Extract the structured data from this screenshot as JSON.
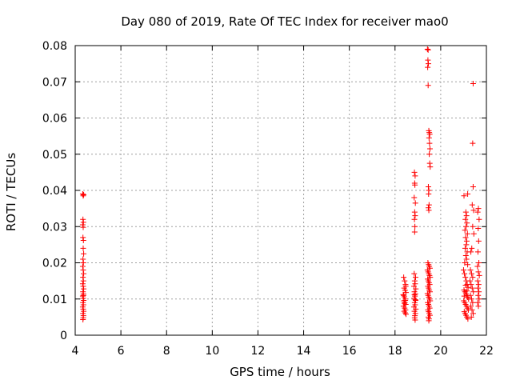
{
  "chart_data": {
    "type": "scatter",
    "title": "Day 080 of 2019, Rate Of TEC Index for receiver mao0",
    "xlabel": "GPS time / hours",
    "ylabel": "ROTI / TECUs",
    "xlim": [
      4,
      22
    ],
    "ylim": [
      0,
      0.08
    ],
    "xticks": [
      4,
      6,
      8,
      10,
      12,
      14,
      16,
      18,
      20,
      22
    ],
    "yticks": [
      0,
      0.01,
      0.02,
      0.03,
      0.04,
      0.05,
      0.06,
      0.07,
      0.08
    ],
    "xtick_labels": [
      "4",
      "6",
      "8",
      "10",
      "12",
      "14",
      "16",
      "18",
      "20",
      "22"
    ],
    "ytick_labels": [
      "0",
      "0.01",
      "0.02",
      "0.03",
      "0.04",
      "0.05",
      "0.06",
      "0.07",
      "0.08"
    ],
    "grid": true,
    "marker": "+",
    "marker_color": "#ff0000",
    "series": [
      {
        "name": "ROTI",
        "points": [
          [
            4.33,
            0.039
          ],
          [
            4.35,
            0.0385
          ],
          [
            4.37,
            0.0388
          ],
          [
            4.34,
            0.032
          ],
          [
            4.36,
            0.0312
          ],
          [
            4.33,
            0.0305
          ],
          [
            4.35,
            0.0298
          ],
          [
            4.34,
            0.027
          ],
          [
            4.36,
            0.0262
          ],
          [
            4.35,
            0.024
          ],
          [
            4.37,
            0.0225
          ],
          [
            4.34,
            0.021
          ],
          [
            4.36,
            0.02
          ],
          [
            4.33,
            0.019
          ],
          [
            4.35,
            0.018
          ],
          [
            4.37,
            0.017
          ],
          [
            4.34,
            0.016
          ],
          [
            4.36,
            0.015
          ],
          [
            4.33,
            0.0142
          ],
          [
            4.35,
            0.0135
          ],
          [
            4.37,
            0.0128
          ],
          [
            4.34,
            0.012
          ],
          [
            4.36,
            0.0114
          ],
          [
            4.33,
            0.0108
          ],
          [
            4.35,
            0.0102
          ],
          [
            4.37,
            0.0096
          ],
          [
            4.34,
            0.009
          ],
          [
            4.36,
            0.0084
          ],
          [
            4.33,
            0.0078
          ],
          [
            4.35,
            0.0072
          ],
          [
            4.37,
            0.0066
          ],
          [
            4.34,
            0.006
          ],
          [
            4.36,
            0.0054
          ],
          [
            4.35,
            0.0048
          ],
          [
            4.34,
            0.0043
          ],
          [
            4.36,
            0.011
          ],
          [
            18.38,
            0.016
          ],
          [
            18.42,
            0.015
          ],
          [
            18.46,
            0.014
          ],
          [
            18.4,
            0.013
          ],
          [
            18.44,
            0.0124
          ],
          [
            18.48,
            0.0118
          ],
          [
            18.36,
            0.0112
          ],
          [
            18.41,
            0.0106
          ],
          [
            18.45,
            0.01
          ],
          [
            18.39,
            0.0095
          ],
          [
            18.43,
            0.009
          ],
          [
            18.47,
            0.0085
          ],
          [
            18.37,
            0.008
          ],
          [
            18.42,
            0.0075
          ],
          [
            18.46,
            0.007
          ],
          [
            18.4,
            0.0066
          ],
          [
            18.44,
            0.0062
          ],
          [
            18.48,
            0.0058
          ],
          [
            18.38,
            0.011
          ],
          [
            18.45,
            0.0096
          ],
          [
            18.41,
            0.0088
          ],
          [
            18.47,
            0.0135
          ],
          [
            18.85,
            0.045
          ],
          [
            18.88,
            0.044
          ],
          [
            18.86,
            0.042
          ],
          [
            18.87,
            0.0415
          ],
          [
            18.84,
            0.038
          ],
          [
            18.89,
            0.0365
          ],
          [
            18.86,
            0.034
          ],
          [
            18.88,
            0.033
          ],
          [
            18.85,
            0.032
          ],
          [
            18.87,
            0.03
          ],
          [
            18.86,
            0.0285
          ],
          [
            18.84,
            0.017
          ],
          [
            18.9,
            0.016
          ],
          [
            18.86,
            0.015
          ],
          [
            18.88,
            0.0142
          ],
          [
            18.83,
            0.0135
          ],
          [
            18.91,
            0.0128
          ],
          [
            18.85,
            0.012
          ],
          [
            18.89,
            0.0114
          ],
          [
            18.87,
            0.0108
          ],
          [
            18.84,
            0.0102
          ],
          [
            18.9,
            0.0096
          ],
          [
            18.86,
            0.009
          ],
          [
            18.88,
            0.0084
          ],
          [
            18.83,
            0.0078
          ],
          [
            18.91,
            0.0072
          ],
          [
            18.85,
            0.0066
          ],
          [
            18.89,
            0.006
          ],
          [
            18.87,
            0.0054
          ],
          [
            18.86,
            0.0048
          ],
          [
            18.88,
            0.0042
          ],
          [
            18.85,
            0.0112
          ],
          [
            18.89,
            0.0098
          ],
          [
            19.42,
            0.079
          ],
          [
            19.45,
            0.0788
          ],
          [
            19.44,
            0.076
          ],
          [
            19.46,
            0.075
          ],
          [
            19.43,
            0.074
          ],
          [
            19.45,
            0.069
          ],
          [
            19.48,
            0.0565
          ],
          [
            19.5,
            0.056
          ],
          [
            19.52,
            0.0555
          ],
          [
            19.49,
            0.0545
          ],
          [
            19.51,
            0.053
          ],
          [
            19.53,
            0.0515
          ],
          [
            19.5,
            0.05
          ],
          [
            19.52,
            0.0475
          ],
          [
            19.54,
            0.0465
          ],
          [
            19.46,
            0.041
          ],
          [
            19.48,
            0.04
          ],
          [
            19.47,
            0.039
          ],
          [
            19.49,
            0.036
          ],
          [
            19.46,
            0.0352
          ],
          [
            19.48,
            0.0345
          ],
          [
            19.44,
            0.02
          ],
          [
            19.47,
            0.0195
          ],
          [
            19.5,
            0.019
          ],
          [
            19.53,
            0.0185
          ],
          [
            19.42,
            0.018
          ],
          [
            19.45,
            0.0175
          ],
          [
            19.48,
            0.017
          ],
          [
            19.51,
            0.0165
          ],
          [
            19.54,
            0.016
          ],
          [
            19.43,
            0.0155
          ],
          [
            19.46,
            0.015
          ],
          [
            19.49,
            0.0145
          ],
          [
            19.52,
            0.014
          ],
          [
            19.44,
            0.0135
          ],
          [
            19.47,
            0.013
          ],
          [
            19.5,
            0.0125
          ],
          [
            19.53,
            0.012
          ],
          [
            19.42,
            0.0115
          ],
          [
            19.45,
            0.011
          ],
          [
            19.48,
            0.0105
          ],
          [
            19.51,
            0.01
          ],
          [
            19.54,
            0.0095
          ],
          [
            19.43,
            0.009
          ],
          [
            19.46,
            0.0085
          ],
          [
            19.49,
            0.008
          ],
          [
            19.52,
            0.0075
          ],
          [
            19.44,
            0.007
          ],
          [
            19.47,
            0.0065
          ],
          [
            19.5,
            0.006
          ],
          [
            19.53,
            0.0055
          ],
          [
            19.46,
            0.005
          ],
          [
            19.49,
            0.0045
          ],
          [
            19.48,
            0.004
          ],
          [
            21.02,
            0.0385
          ],
          [
            21.18,
            0.039
          ],
          [
            21.1,
            0.034
          ],
          [
            21.13,
            0.033
          ],
          [
            21.08,
            0.032
          ],
          [
            21.15,
            0.031
          ],
          [
            21.11,
            0.03
          ],
          [
            21.06,
            0.029
          ],
          [
            21.17,
            0.028
          ],
          [
            21.09,
            0.027
          ],
          [
            21.14,
            0.026
          ],
          [
            21.12,
            0.025
          ],
          [
            21.07,
            0.024
          ],
          [
            21.16,
            0.023
          ],
          [
            21.1,
            0.022
          ],
          [
            21.13,
            0.021
          ],
          [
            21.05,
            0.02
          ],
          [
            21.18,
            0.0195
          ],
          [
            21.0,
            0.018
          ],
          [
            21.04,
            0.017
          ],
          [
            21.08,
            0.016
          ],
          [
            21.12,
            0.015
          ],
          [
            21.16,
            0.014
          ],
          [
            21.2,
            0.0132
          ],
          [
            21.02,
            0.0125
          ],
          [
            21.06,
            0.012
          ],
          [
            21.1,
            0.0115
          ],
          [
            21.14,
            0.011
          ],
          [
            21.18,
            0.0105
          ],
          [
            21.22,
            0.01
          ],
          [
            21.01,
            0.0095
          ],
          [
            21.05,
            0.009
          ],
          [
            21.09,
            0.0085
          ],
          [
            21.13,
            0.008
          ],
          [
            21.17,
            0.0075
          ],
          [
            21.21,
            0.007
          ],
          [
            21.03,
            0.0065
          ],
          [
            21.07,
            0.006
          ],
          [
            21.11,
            0.0055
          ],
          [
            21.15,
            0.005
          ],
          [
            21.19,
            0.0045
          ],
          [
            21.09,
            0.0138
          ],
          [
            21.15,
            0.0122
          ],
          [
            21.03,
            0.0108
          ],
          [
            21.42,
            0.0695
          ],
          [
            21.4,
            0.053
          ],
          [
            21.42,
            0.041
          ],
          [
            21.38,
            0.036
          ],
          [
            21.44,
            0.0345
          ],
          [
            21.4,
            0.03
          ],
          [
            21.45,
            0.028
          ],
          [
            21.36,
            0.024
          ],
          [
            21.32,
            0.023
          ],
          [
            21.3,
            0.018
          ],
          [
            21.35,
            0.017
          ],
          [
            21.4,
            0.016
          ],
          [
            21.28,
            0.015
          ],
          [
            21.33,
            0.014
          ],
          [
            21.38,
            0.013
          ],
          [
            21.43,
            0.012
          ],
          [
            21.3,
            0.011
          ],
          [
            21.35,
            0.01
          ],
          [
            21.4,
            0.009
          ],
          [
            21.32,
            0.008
          ],
          [
            21.37,
            0.007
          ],
          [
            21.42,
            0.006
          ],
          [
            21.34,
            0.005
          ],
          [
            21.65,
            0.035
          ],
          [
            21.62,
            0.034
          ],
          [
            21.68,
            0.032
          ],
          [
            21.64,
            0.0295
          ],
          [
            21.66,
            0.026
          ],
          [
            21.63,
            0.023
          ],
          [
            21.67,
            0.02
          ],
          [
            21.61,
            0.019
          ],
          [
            21.65,
            0.0175
          ],
          [
            21.69,
            0.0165
          ],
          [
            21.62,
            0.015
          ],
          [
            21.66,
            0.014
          ],
          [
            21.63,
            0.013
          ],
          [
            21.67,
            0.012
          ],
          [
            21.64,
            0.011
          ],
          [
            21.68,
            0.01
          ],
          [
            21.62,
            0.009
          ],
          [
            21.65,
            0.008
          ]
        ]
      }
    ]
  }
}
